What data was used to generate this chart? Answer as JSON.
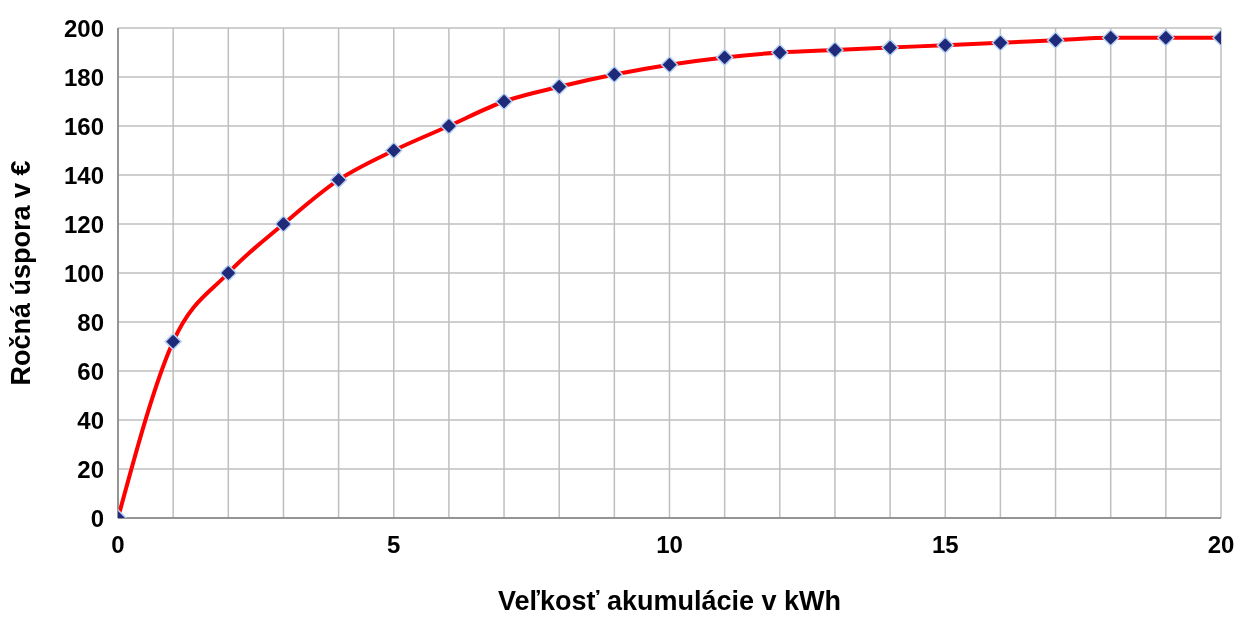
{
  "chart_data": {
    "type": "line",
    "xlabel": "Veľkosť akumulácie v kWh",
    "ylabel": "Ročná úspora v €",
    "x": [
      0,
      1,
      2,
      3,
      4,
      5,
      6,
      7,
      8,
      9,
      10,
      11,
      12,
      13,
      14,
      15,
      16,
      17,
      18,
      19,
      20
    ],
    "series": [
      {
        "color": "#ff0000",
        "values": [
          0,
          72,
          100,
          120,
          138,
          150,
          160,
          170,
          176,
          181,
          185,
          188,
          190,
          191,
          192,
          193,
          194,
          195,
          196,
          196,
          196
        ]
      }
    ],
    "marker": "diamond",
    "xlim": [
      0,
      20
    ],
    "ylim": [
      0,
      200
    ],
    "xticks": [
      0,
      {
        "value": 1,
        "label": null
      },
      {
        "value": 2,
        "label": null
      },
      {
        "value": 3,
        "label": null
      },
      {
        "value": 4,
        "label": null
      },
      5,
      {
        "value": 6,
        "label": null
      },
      {
        "value": 7,
        "label": null
      },
      {
        "value": 8,
        "label": null
      },
      {
        "value": 9,
        "label": null
      },
      10,
      {
        "value": 11,
        "label": null
      },
      {
        "value": 12,
        "label": null
      },
      {
        "value": 13,
        "label": null
      },
      {
        "value": 14,
        "label": null
      },
      15,
      {
        "value": 16,
        "label": null
      },
      {
        "value": 17,
        "label": null
      },
      {
        "value": 18,
        "label": null
      },
      {
        "value": 19,
        "label": null
      },
      20
    ],
    "yticks": [
      0,
      20,
      40,
      60,
      80,
      100,
      120,
      140,
      160,
      180,
      200
    ],
    "grid": true,
    "legend": false
  }
}
